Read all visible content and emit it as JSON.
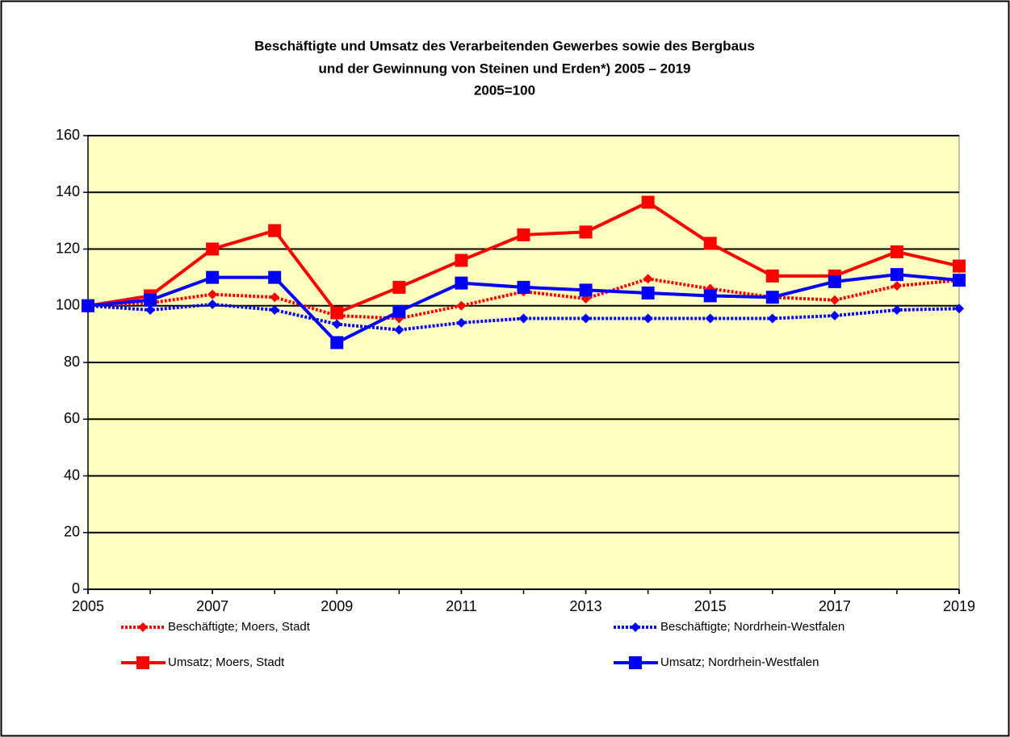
{
  "chart_data": {
    "type": "line",
    "title": [
      "Beschäftigte und Umsatz des Verarbeitenden Gewerbes sowie des Bergbaus",
      "und der Gewinnung von Steinen und Erden*) 2005 – 2019",
      "2005=100"
    ],
    "x": [
      2005,
      2006,
      2007,
      2008,
      2009,
      2010,
      2011,
      2012,
      2013,
      2014,
      2015,
      2016,
      2017,
      2018,
      2019
    ],
    "xlim": [
      2005,
      2019
    ],
    "xticks": [
      2005,
      2007,
      2009,
      2011,
      2013,
      2015,
      2017,
      2019
    ],
    "ylim": [
      0,
      160
    ],
    "yticks": [
      0,
      20,
      40,
      60,
      80,
      100,
      120,
      140,
      160
    ],
    "grid": true,
    "background": "#ffffc0",
    "legend": "bottom",
    "series": [
      {
        "name": "Beschäftigte; Moers, Stadt",
        "color": "#ff0000",
        "dashed": true,
        "marker": "diamond",
        "values": [
          100,
          101,
          104,
          103,
          96.5,
          95.5,
          100,
          105,
          102.5,
          109.5,
          106,
          103,
          102,
          107,
          109
        ]
      },
      {
        "name": "Beschäftigte; Nordrhein-Westfalen",
        "color": "#0000ff",
        "dashed": true,
        "marker": "diamond",
        "values": [
          100,
          98.5,
          100.5,
          98.5,
          93.5,
          91.5,
          94,
          95.5,
          95.5,
          95.5,
          95.5,
          95.5,
          96.5,
          98.5,
          99
        ]
      },
      {
        "name": "Umsatz; Moers, Stadt",
        "color": "#ff0000",
        "dashed": false,
        "marker": "square",
        "values": [
          100,
          103.5,
          120,
          126.5,
          97.5,
          106.5,
          116,
          125,
          126,
          136.5,
          122,
          110.5,
          110.5,
          119,
          114
        ]
      },
      {
        "name": "Umsatz; Nordrhein-Westfalen",
        "color": "#0000ff",
        "dashed": false,
        "marker": "square",
        "values": [
          100,
          102,
          110,
          110,
          87,
          98,
          108,
          106.5,
          105.5,
          104.5,
          103.5,
          103,
          108.5,
          111,
          109
        ]
      }
    ]
  }
}
